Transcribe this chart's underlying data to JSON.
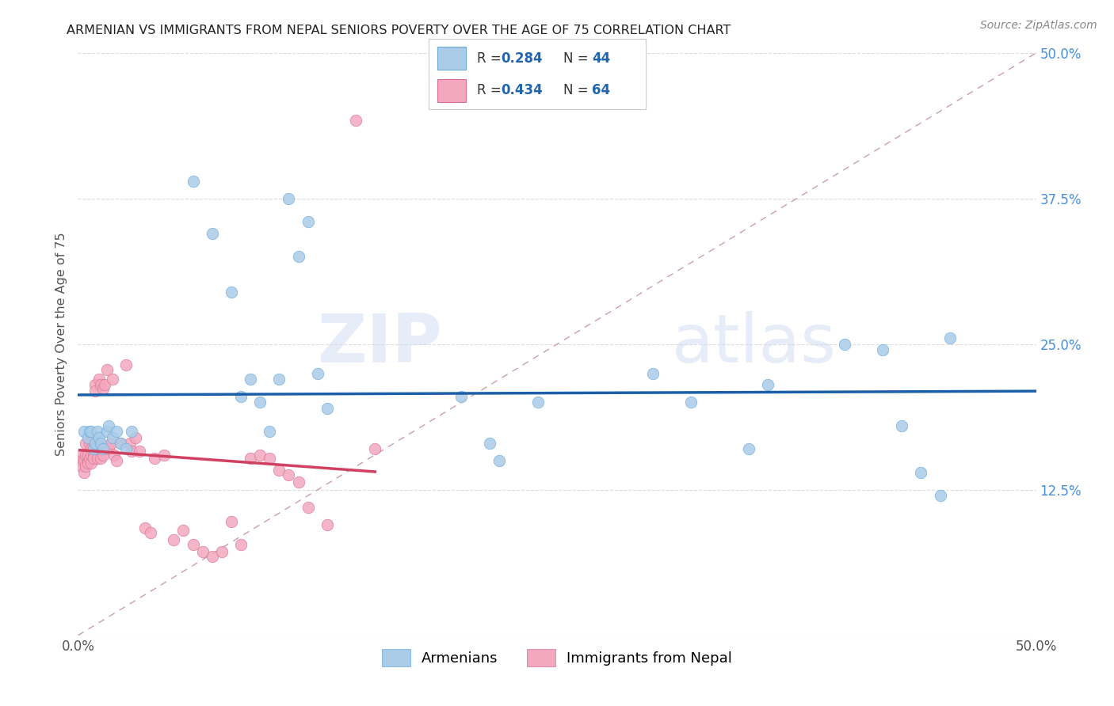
{
  "title": "ARMENIAN VS IMMIGRANTS FROM NEPAL SENIORS POVERTY OVER THE AGE OF 75 CORRELATION CHART",
  "source": "Source: ZipAtlas.com",
  "ylabel": "Seniors Poverty Over the Age of 75",
  "xlim": [
    0.0,
    0.5
  ],
  "ylim": [
    0.0,
    0.5
  ],
  "xticks": [
    0.0,
    0.1,
    0.2,
    0.3,
    0.4,
    0.5
  ],
  "yticks": [
    0.0,
    0.125,
    0.25,
    0.375,
    0.5
  ],
  "xtick_labels": [
    "0.0%",
    "",
    "",
    "",
    "",
    "50.0%"
  ],
  "ytick_labels": [
    "",
    "12.5%",
    "25.0%",
    "37.5%",
    "50.0%"
  ],
  "legend_R_armenian": "0.284",
  "legend_N_armenian": "44",
  "legend_R_nepal": "0.434",
  "legend_N_nepal": "64",
  "color_armenian": "#AACCE8",
  "color_nepal": "#F4A8C0",
  "trendline_armenian_color": "#1A5FA8",
  "trendline_nepal_color": "#D04060",
  "background_color": "#FFFFFF",
  "grid_color": "#DDDDDD",
  "armenian_x": [
    0.003,
    0.005,
    0.006,
    0.007,
    0.008,
    0.009,
    0.01,
    0.011,
    0.012,
    0.013,
    0.015,
    0.016,
    0.018,
    0.02,
    0.022,
    0.025,
    0.028,
    0.06,
    0.07,
    0.08,
    0.085,
    0.09,
    0.095,
    0.1,
    0.105,
    0.11,
    0.115,
    0.12,
    0.125,
    0.13,
    0.2,
    0.215,
    0.22,
    0.24,
    0.3,
    0.32,
    0.35,
    0.36,
    0.4,
    0.42,
    0.43,
    0.44,
    0.45,
    0.455
  ],
  "armenian_y": [
    0.175,
    0.17,
    0.175,
    0.175,
    0.16,
    0.165,
    0.175,
    0.17,
    0.165,
    0.16,
    0.175,
    0.18,
    0.17,
    0.175,
    0.165,
    0.16,
    0.175,
    0.39,
    0.345,
    0.295,
    0.205,
    0.22,
    0.2,
    0.175,
    0.22,
    0.375,
    0.325,
    0.355,
    0.225,
    0.195,
    0.205,
    0.165,
    0.15,
    0.2,
    0.225,
    0.2,
    0.16,
    0.215,
    0.25,
    0.245,
    0.18,
    0.14,
    0.12,
    0.255
  ],
  "nepal_x": [
    0.001,
    0.002,
    0.002,
    0.003,
    0.003,
    0.004,
    0.004,
    0.004,
    0.005,
    0.005,
    0.005,
    0.006,
    0.006,
    0.007,
    0.007,
    0.007,
    0.008,
    0.008,
    0.008,
    0.009,
    0.009,
    0.01,
    0.01,
    0.011,
    0.011,
    0.012,
    0.012,
    0.013,
    0.013,
    0.014,
    0.015,
    0.016,
    0.017,
    0.018,
    0.019,
    0.02,
    0.022,
    0.025,
    0.027,
    0.028,
    0.03,
    0.032,
    0.035,
    0.038,
    0.04,
    0.045,
    0.05,
    0.055,
    0.06,
    0.065,
    0.07,
    0.075,
    0.08,
    0.085,
    0.09,
    0.095,
    0.1,
    0.105,
    0.11,
    0.115,
    0.12,
    0.13,
    0.145,
    0.155
  ],
  "nepal_y": [
    0.155,
    0.15,
    0.145,
    0.15,
    0.14,
    0.155,
    0.145,
    0.165,
    0.15,
    0.155,
    0.148,
    0.165,
    0.152,
    0.16,
    0.155,
    0.148,
    0.16,
    0.155,
    0.152,
    0.215,
    0.21,
    0.16,
    0.152,
    0.165,
    0.22,
    0.215,
    0.152,
    0.212,
    0.155,
    0.215,
    0.228,
    0.16,
    0.165,
    0.22,
    0.155,
    0.15,
    0.165,
    0.232,
    0.165,
    0.158,
    0.17,
    0.158,
    0.092,
    0.088,
    0.152,
    0.155,
    0.082,
    0.09,
    0.078,
    0.072,
    0.068,
    0.072,
    0.098,
    0.078,
    0.152,
    0.155,
    0.152,
    0.142,
    0.138,
    0.132,
    0.11,
    0.095,
    0.442,
    0.16
  ]
}
